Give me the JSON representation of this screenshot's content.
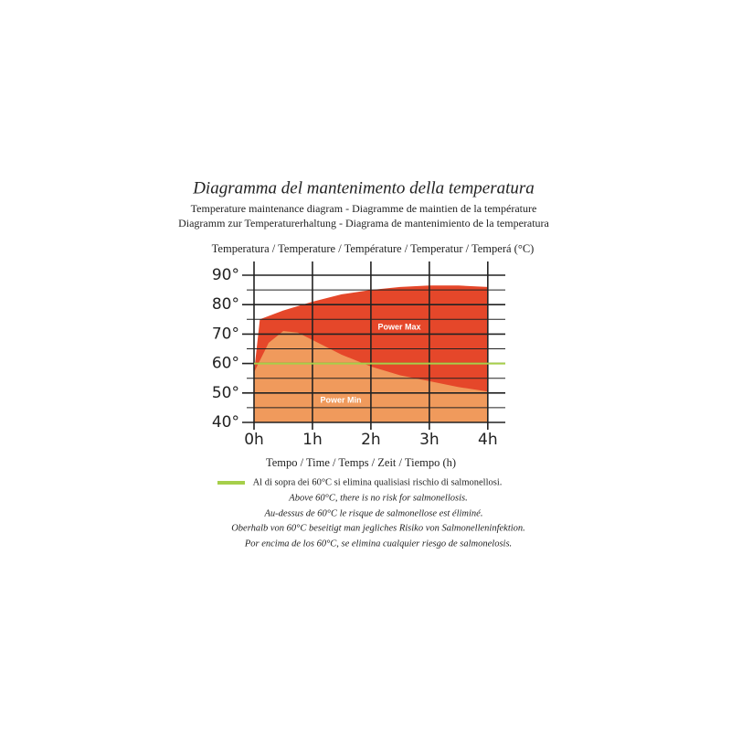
{
  "chart_data": {
    "type": "area",
    "title": "Diagramma del mantenimento della temperatura",
    "subtitle": [
      "Temperature maintenance diagram - Diagramme de maintien de la température",
      "Diagramm zur Temperaturerhaltung - Diagrama de mantenimiento de la temperatura"
    ],
    "y_label": "Temperatura / Temperature / Température / Temperatur / Temperá (°C)",
    "x_label": "Tempo / Time / Temps / Zeit / Tiempo (h)",
    "series": [
      {
        "name": "Power Max",
        "color": "#e5472a",
        "x": [
          0,
          0.1,
          0.5,
          1,
          1.5,
          2,
          2.5,
          3,
          3.5,
          4
        ],
        "values": [
          57,
          75,
          78,
          81,
          83.5,
          85,
          86,
          86.5,
          86.5,
          86
        ]
      },
      {
        "name": "Power Min",
        "color": "#f09a5c",
        "x": [
          0,
          0.25,
          0.5,
          0.75,
          1,
          1.5,
          2,
          2.5,
          3,
          3.5,
          4
        ],
        "values": [
          57,
          67,
          71,
          70.5,
          68,
          63,
          59,
          56,
          54,
          52,
          50.5
        ]
      }
    ],
    "xlim": [
      0,
      4.3
    ],
    "ylim": [
      40,
      90
    ],
    "xticks": [
      {
        "value": 0,
        "label": "0h"
      },
      {
        "value": 1,
        "label": "1h"
      },
      {
        "value": 2,
        "label": "2h"
      },
      {
        "value": 3,
        "label": "3h"
      },
      {
        "value": 4,
        "label": "4h"
      }
    ],
    "yticks": [
      {
        "value": 40,
        "label": "40°"
      },
      {
        "value": 50,
        "label": "50°"
      },
      {
        "value": 60,
        "label": "60°"
      },
      {
        "value": 70,
        "label": "70°"
      },
      {
        "value": 80,
        "label": "80°"
      },
      {
        "value": 90,
        "label": "90°"
      }
    ],
    "yminor": [
      45,
      55,
      65,
      75,
      85
    ],
    "grid": true,
    "reference_line": {
      "value": 60,
      "color": "#a6cf4a",
      "note": [
        "Al di sopra dei 60°C si elimina qualisiasi rischio di salmonellosi.",
        "Above 60°C, there is no risk for salmonellosis.",
        "Au-dessus de 60°C le risque de salmonellose est éliminé.",
        "Oberhalb von 60°C beseitigt man jegliches Risiko von Salmonelleninfektion.",
        "Por encima de los 60°C, se elimina cualquier riesgo de salmonelosis."
      ]
    }
  }
}
